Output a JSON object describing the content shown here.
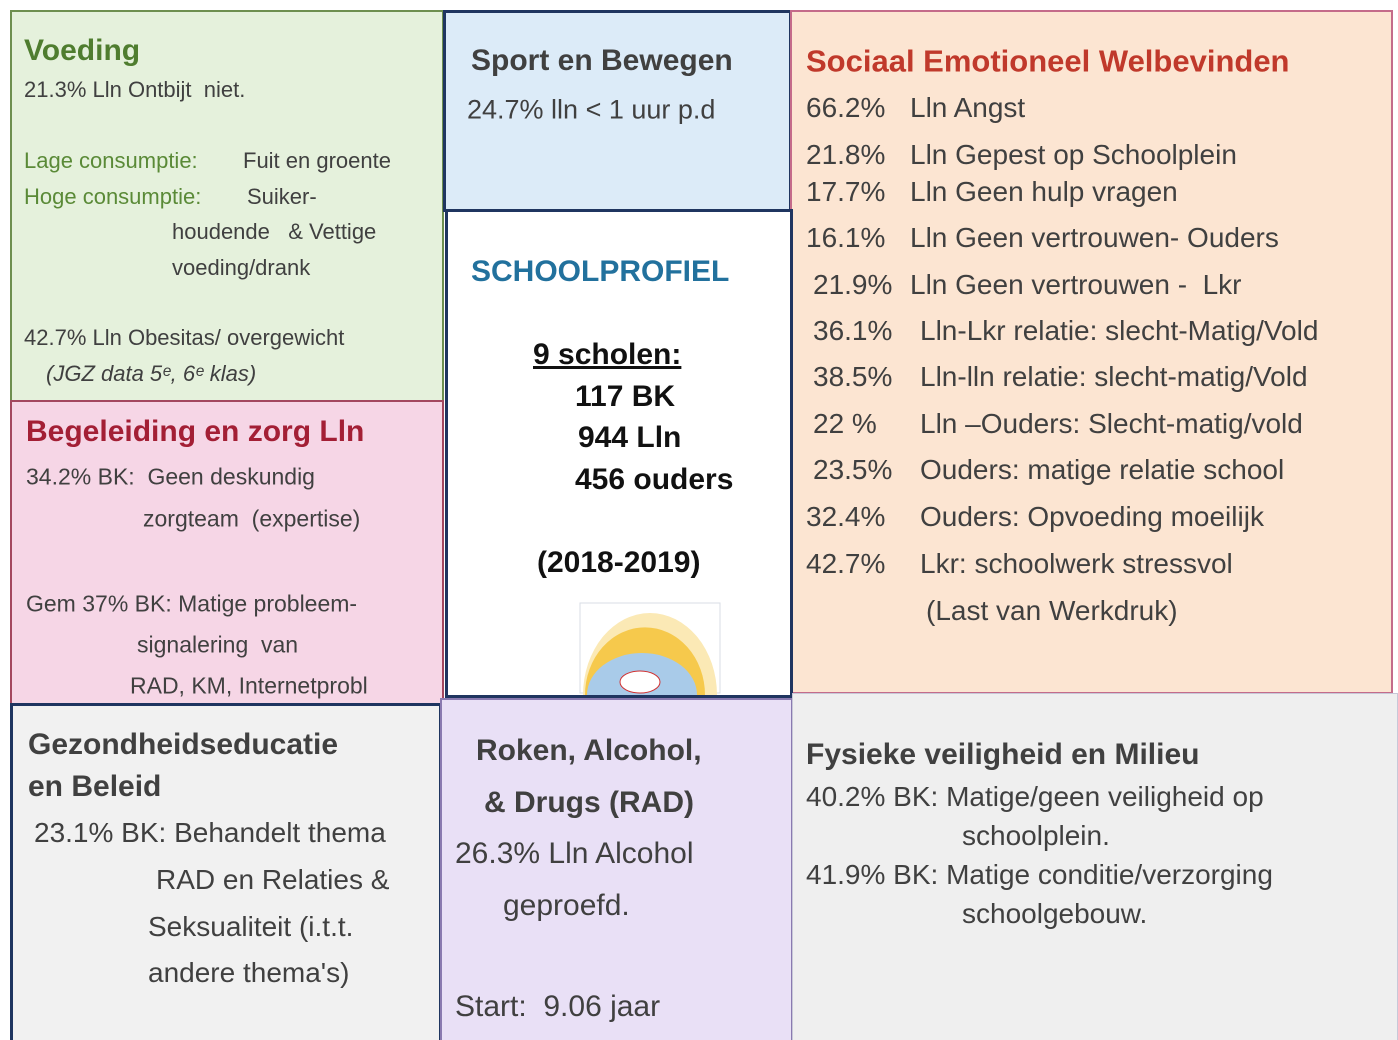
{
  "voeding": {
    "title": "Voeding",
    "stat_breakfast": "21.3% Lln Ontbijt  niet.",
    "low_label": "Lage consumptie:",
    "low_text": "Fuit en groente",
    "high_label": "Hoge consumptie:",
    "high_text": [
      "Suiker-",
      "houdende   & Vettige",
      "voeding/drank"
    ],
    "stat_obesity": "42.7% Lln Obesitas/ overgewicht",
    "source": "(JGZ data 5ᵉ, 6ᵉ klas)"
  },
  "sport": {
    "title": "Sport en Bewegen",
    "text": "24.7% lln < 1 uur p.d"
  },
  "profiel": {
    "title": "SCHOOLPROFIEL",
    "schools": "9 scholen:",
    "lines": [
      "117 BK",
      "944 Lln",
      "456 ouders"
    ],
    "years": "(2018-2019)"
  },
  "sociaal": {
    "title": "Sociaal Emotioneel Welbevinden",
    "items": [
      {
        "pct": "66.2%",
        "text": "Lln Angst"
      },
      {
        "pct": "21.8%",
        "text": "Lln Gepest op Schoolplein"
      },
      {
        "pct": "17.7%",
        "text": "Lln Geen hulp vragen"
      },
      {
        "pct": "16.1%",
        "text": "Lln Geen vertrouwen- Ouders"
      },
      {
        "pct": "21.9%",
        "text": "Lln Geen vertrouwen -  Lkr"
      },
      {
        "pct": "36.1%",
        "text": "Lln-Lkr relatie: slecht-Matig/Vold"
      },
      {
        "pct": "38.5%",
        "text": "Lln-lln relatie: slecht-matig/Vold"
      },
      {
        "pct": "22 %",
        "text": "Lln –Ouders: Slecht-matig/vold"
      },
      {
        "pct": "23.5%",
        "text": "Ouders: matige relatie school"
      },
      {
        "pct": "32.4%",
        "text": "Ouders: Opvoeding moeilijk"
      },
      {
        "pct": "42.7%",
        "text": "Lkr: schoolwerk stressvol"
      }
    ],
    "note": "(Last van Werkdruk)"
  },
  "begeleiding": {
    "title": "Begeleiding en zorg Lln",
    "lines": [
      "34.2% BK:  Geen deskundig",
      "zorgteam  (expertise)",
      "Gem 37% BK: Matige probleem-",
      "signalering  van",
      "RAD, KM, Internetprobl"
    ]
  },
  "gezondheid": {
    "title": [
      "Gezondheidseducatie",
      "en Beleid"
    ],
    "lines": [
      "23.1% BK: Behandelt thema",
      "RAD en Relaties &",
      "Seksualiteit (i.t.t.",
      "andere thema's)"
    ]
  },
  "roken": {
    "title": [
      "Roken, Alcohol,",
      "& Drugs (RAD)"
    ],
    "lines": [
      "26.3% Lln Alcohol",
      "geproefd.",
      "Start:  9.06 jaar"
    ]
  },
  "fysiek": {
    "title": "Fysieke veiligheid en Milieu",
    "lines": [
      "40.2% BK: Matige/geen veiligheid op",
      "schoolplein.",
      "41.9% BK: Matige conditie/verzorging",
      "schoolgebouw."
    ]
  }
}
